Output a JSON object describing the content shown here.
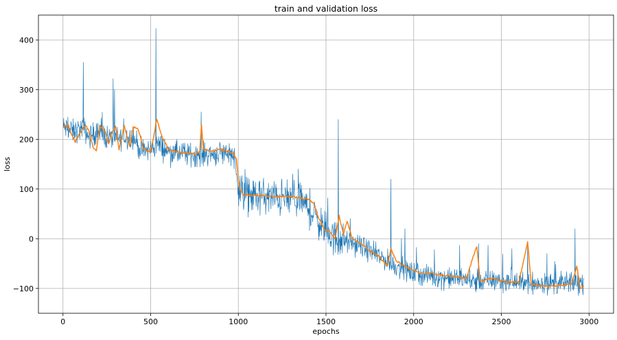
{
  "chart_data": {
    "type": "line",
    "title": "train and validation loss",
    "xlabel": "epochs",
    "ylabel": "loss",
    "xlim": [
      -140,
      3140
    ],
    "ylim": [
      -150,
      450
    ],
    "xticks": [
      0,
      500,
      1000,
      1500,
      2000,
      2500,
      3000
    ],
    "yticks": [
      -100,
      0,
      100,
      200,
      300,
      400
    ],
    "grid": true,
    "legend": "none",
    "colors": {
      "train": "#1f77b4",
      "validation": "#ff7f0e"
    },
    "series": [
      {
        "key": "train",
        "style": "noisy",
        "anchors": [
          [
            0,
            225
          ],
          [
            60,
            215
          ],
          [
            90,
            220
          ],
          [
            115,
            222
          ],
          [
            150,
            205
          ],
          [
            200,
            215
          ],
          [
            250,
            205
          ],
          [
            300,
            200
          ],
          [
            350,
            205
          ],
          [
            400,
            205
          ],
          [
            450,
            175
          ],
          [
            500,
            180
          ],
          [
            540,
            190
          ],
          [
            600,
            175
          ],
          [
            700,
            170
          ],
          [
            800,
            170
          ],
          [
            900,
            172
          ],
          [
            960,
            175
          ],
          [
            980,
            160
          ],
          [
            1000,
            105
          ],
          [
            1020,
            90
          ],
          [
            1100,
            85
          ],
          [
            1200,
            82
          ],
          [
            1300,
            80
          ],
          [
            1350,
            78
          ],
          [
            1400,
            60
          ],
          [
            1450,
            40
          ],
          [
            1500,
            15
          ],
          [
            1550,
            0
          ],
          [
            1600,
            -5
          ],
          [
            1700,
            -15
          ],
          [
            1800,
            -35
          ],
          [
            1900,
            -55
          ],
          [
            2000,
            -70
          ],
          [
            2100,
            -75
          ],
          [
            2200,
            -80
          ],
          [
            2300,
            -82
          ],
          [
            2400,
            -85
          ],
          [
            2500,
            -85
          ],
          [
            2600,
            -88
          ],
          [
            2700,
            -90
          ],
          [
            2800,
            -90
          ],
          [
            2900,
            -90
          ],
          [
            2970,
            -90
          ]
        ],
        "spikes": [
          [
            115,
            355
          ],
          [
            285,
            322
          ],
          [
            530,
            423
          ],
          [
            1570,
            240
          ],
          [
            788,
            255
          ],
          [
            1870,
            120
          ],
          [
            2920,
            20
          ],
          [
            2650,
            -5
          ],
          [
            2560,
            -20
          ],
          [
            2370,
            -10
          ],
          [
            2760,
            -30
          ],
          [
            1950,
            20
          ]
        ]
      },
      {
        "key": "validation",
        "style": "smooth",
        "anchors": [
          [
            0,
            225
          ],
          [
            30,
            228
          ],
          [
            50,
            210
          ],
          [
            70,
            195
          ],
          [
            100,
            215
          ],
          [
            130,
            230
          ],
          [
            150,
            215
          ],
          [
            170,
            185
          ],
          [
            190,
            175
          ],
          [
            210,
            225
          ],
          [
            240,
            218
          ],
          [
            260,
            190
          ],
          [
            280,
            215
          ],
          [
            300,
            225
          ],
          [
            320,
            180
          ],
          [
            350,
            228
          ],
          [
            380,
            185
          ],
          [
            400,
            225
          ],
          [
            430,
            220
          ],
          [
            460,
            180
          ],
          [
            500,
            175
          ],
          [
            520,
            210
          ],
          [
            535,
            242
          ],
          [
            560,
            210
          ],
          [
            600,
            180
          ],
          [
            650,
            175
          ],
          [
            700,
            172
          ],
          [
            750,
            170
          ],
          [
            780,
            175
          ],
          [
            790,
            228
          ],
          [
            800,
            180
          ],
          [
            850,
            175
          ],
          [
            900,
            180
          ],
          [
            950,
            175
          ],
          [
            975,
            170
          ],
          [
            990,
            160
          ],
          [
            1000,
            120
          ],
          [
            1010,
            98
          ],
          [
            1030,
            88
          ],
          [
            1100,
            87
          ],
          [
            1200,
            85
          ],
          [
            1300,
            85
          ],
          [
            1350,
            82
          ],
          [
            1400,
            80
          ],
          [
            1430,
            70
          ],
          [
            1460,
            40
          ],
          [
            1490,
            20
          ],
          [
            1520,
            15
          ],
          [
            1550,
            0
          ],
          [
            1575,
            45
          ],
          [
            1600,
            10
          ],
          [
            1620,
            35
          ],
          [
            1650,
            0
          ],
          [
            1700,
            -10
          ],
          [
            1750,
            -25
          ],
          [
            1800,
            -35
          ],
          [
            1850,
            -55
          ],
          [
            1870,
            -20
          ],
          [
            1900,
            -45
          ],
          [
            1950,
            -55
          ],
          [
            2000,
            -65
          ],
          [
            2050,
            -70
          ],
          [
            2100,
            -70
          ],
          [
            2200,
            -75
          ],
          [
            2300,
            -80
          ],
          [
            2360,
            -15
          ],
          [
            2380,
            -85
          ],
          [
            2450,
            -80
          ],
          [
            2500,
            -85
          ],
          [
            2600,
            -88
          ],
          [
            2650,
            -5
          ],
          [
            2670,
            -90
          ],
          [
            2700,
            -95
          ],
          [
            2800,
            -95
          ],
          [
            2900,
            -90
          ],
          [
            2930,
            -55
          ],
          [
            2950,
            -100
          ],
          [
            2970,
            -95
          ]
        ]
      }
    ]
  }
}
